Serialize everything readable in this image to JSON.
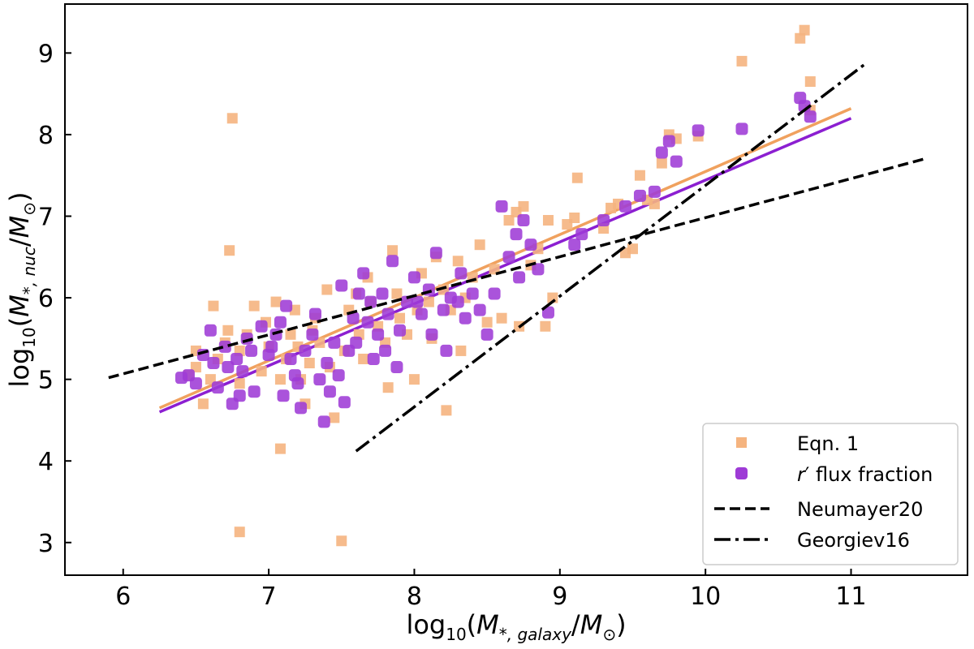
{
  "chart_data": {
    "type": "scatter",
    "xlim": [
      5.6,
      11.8
    ],
    "ylim": [
      2.6,
      9.6
    ],
    "xticks": [
      6,
      7,
      8,
      9,
      10,
      11
    ],
    "yticks": [
      3,
      4,
      5,
      6,
      7,
      8,
      9
    ],
    "xlabel": {
      "prefix": "log",
      "base": "10",
      "open": "(",
      "var": "M",
      "sub": "*, galaxy",
      "slash": "/",
      "var2": "M",
      "sub2": "⊙",
      "close": ")"
    },
    "ylabel": {
      "prefix": "log",
      "base": "10",
      "open": "(",
      "var": "M",
      "sub": "*, nuc",
      "slash": "/",
      "var2": "M",
      "sub2": "⊙",
      "close": ")"
    },
    "legend_position": "lower-right",
    "colors": {
      "eqn1": "#f5b47f",
      "rflux": "#9e3bd6",
      "eqn1_line": "#f0a15e",
      "rflux_line": "#8c1fd1",
      "ref": "#000000"
    },
    "series": [
      {
        "name": "Eqn. 1",
        "kind": "scatter",
        "marker": "square",
        "points": [
          [
            6.45,
            5.05
          ],
          [
            6.5,
            5.15
          ],
          [
            6.5,
            5.35
          ],
          [
            6.55,
            4.7
          ],
          [
            6.6,
            5.0
          ],
          [
            6.62,
            5.9
          ],
          [
            6.65,
            5.25
          ],
          [
            6.7,
            5.45
          ],
          [
            6.72,
            5.6
          ],
          [
            6.75,
            8.2
          ],
          [
            6.73,
            6.58
          ],
          [
            6.8,
            5.35
          ],
          [
            6.8,
            4.95
          ],
          [
            6.8,
            3.13
          ],
          [
            6.85,
            5.55
          ],
          [
            6.9,
            5.9
          ],
          [
            6.95,
            5.1
          ],
          [
            6.98,
            5.7
          ],
          [
            7.0,
            5.4
          ],
          [
            7.05,
            5.95
          ],
          [
            7.08,
            5.0
          ],
          [
            7.08,
            4.15
          ],
          [
            7.12,
            5.25
          ],
          [
            7.15,
            5.55
          ],
          [
            7.18,
            5.85
          ],
          [
            7.2,
            5.4
          ],
          [
            7.22,
            5.0
          ],
          [
            7.25,
            4.7
          ],
          [
            7.28,
            5.2
          ],
          [
            7.3,
            5.6
          ],
          [
            7.32,
            5.75
          ],
          [
            7.35,
            5.45
          ],
          [
            7.4,
            6.1
          ],
          [
            7.42,
            5.15
          ],
          [
            7.45,
            4.53
          ],
          [
            7.5,
            3.02
          ],
          [
            7.52,
            5.35
          ],
          [
            7.55,
            5.85
          ],
          [
            7.6,
            6.05
          ],
          [
            7.62,
            5.55
          ],
          [
            7.65,
            5.25
          ],
          [
            7.68,
            6.25
          ],
          [
            7.7,
            5.95
          ],
          [
            7.75,
            5.65
          ],
          [
            7.8,
            5.45
          ],
          [
            7.82,
            4.9
          ],
          [
            7.85,
            6.58
          ],
          [
            7.88,
            6.05
          ],
          [
            7.9,
            5.75
          ],
          [
            7.95,
            5.55
          ],
          [
            8.0,
            5.0
          ],
          [
            8.02,
            5.85
          ],
          [
            8.05,
            6.3
          ],
          [
            8.1,
            5.95
          ],
          [
            8.12,
            5.5
          ],
          [
            8.15,
            6.5
          ],
          [
            8.2,
            6.1
          ],
          [
            8.22,
            4.62
          ],
          [
            8.25,
            5.85
          ],
          [
            8.3,
            6.45
          ],
          [
            8.32,
            5.35
          ],
          [
            8.35,
            6.0
          ],
          [
            8.4,
            6.25
          ],
          [
            8.45,
            6.65
          ],
          [
            8.5,
            5.7
          ],
          [
            8.55,
            6.35
          ],
          [
            8.6,
            5.75
          ],
          [
            8.65,
            6.95
          ],
          [
            8.7,
            7.05
          ],
          [
            8.72,
            5.65
          ],
          [
            8.75,
            7.12
          ],
          [
            8.8,
            6.4
          ],
          [
            8.85,
            6.6
          ],
          [
            8.9,
            5.65
          ],
          [
            8.92,
            6.95
          ],
          [
            8.95,
            6.0
          ],
          [
            9.05,
            6.9
          ],
          [
            9.1,
            6.98
          ],
          [
            9.12,
            7.47
          ],
          [
            9.3,
            6.85
          ],
          [
            9.35,
            7.1
          ],
          [
            9.4,
            7.15
          ],
          [
            9.45,
            6.55
          ],
          [
            9.5,
            6.6
          ],
          [
            9.55,
            7.5
          ],
          [
            9.6,
            7.2
          ],
          [
            9.65,
            7.15
          ],
          [
            9.7,
            7.65
          ],
          [
            9.75,
            8.0
          ],
          [
            9.8,
            7.95
          ],
          [
            9.95,
            7.98
          ],
          [
            10.25,
            8.9
          ],
          [
            10.65,
            9.18
          ],
          [
            10.68,
            9.28
          ],
          [
            10.72,
            8.65
          ],
          [
            10.72,
            8.3
          ]
        ]
      },
      {
        "name": "r′ flux fraction",
        "kind": "scatter",
        "marker": "circle",
        "points": [
          [
            6.4,
            5.02
          ],
          [
            6.45,
            5.05
          ],
          [
            6.5,
            4.95
          ],
          [
            6.55,
            5.3
          ],
          [
            6.6,
            5.6
          ],
          [
            6.62,
            5.2
          ],
          [
            6.65,
            4.9
          ],
          [
            6.7,
            5.4
          ],
          [
            6.72,
            5.15
          ],
          [
            6.75,
            4.7
          ],
          [
            6.78,
            5.25
          ],
          [
            6.8,
            4.8
          ],
          [
            6.82,
            5.1
          ],
          [
            6.85,
            5.5
          ],
          [
            6.88,
            5.35
          ],
          [
            6.9,
            4.85
          ],
          [
            6.95,
            5.65
          ],
          [
            7.0,
            5.3
          ],
          [
            7.02,
            5.4
          ],
          [
            7.05,
            5.55
          ],
          [
            7.08,
            5.7
          ],
          [
            7.1,
            4.8
          ],
          [
            7.12,
            5.9
          ],
          [
            7.15,
            5.25
          ],
          [
            7.18,
            5.05
          ],
          [
            7.2,
            4.95
          ],
          [
            7.22,
            4.65
          ],
          [
            7.25,
            5.35
          ],
          [
            7.3,
            5.55
          ],
          [
            7.32,
            5.8
          ],
          [
            7.35,
            5.0
          ],
          [
            7.38,
            4.48
          ],
          [
            7.4,
            5.2
          ],
          [
            7.42,
            4.85
          ],
          [
            7.45,
            5.45
          ],
          [
            7.48,
            5.05
          ],
          [
            7.5,
            6.15
          ],
          [
            7.52,
            4.72
          ],
          [
            7.55,
            5.35
          ],
          [
            7.58,
            5.75
          ],
          [
            7.6,
            5.45
          ],
          [
            7.62,
            6.05
          ],
          [
            7.65,
            6.3
          ],
          [
            7.68,
            5.7
          ],
          [
            7.7,
            5.95
          ],
          [
            7.72,
            5.25
          ],
          [
            7.75,
            5.55
          ],
          [
            7.78,
            6.05
          ],
          [
            7.8,
            5.35
          ],
          [
            7.82,
            5.8
          ],
          [
            7.85,
            6.45
          ],
          [
            7.88,
            5.15
          ],
          [
            7.9,
            5.6
          ],
          [
            7.95,
            5.95
          ],
          [
            8.0,
            6.25
          ],
          [
            8.02,
            5.95
          ],
          [
            8.05,
            5.8
          ],
          [
            8.1,
            6.1
          ],
          [
            8.12,
            5.55
          ],
          [
            8.15,
            6.55
          ],
          [
            8.2,
            5.85
          ],
          [
            8.22,
            5.35
          ],
          [
            8.25,
            6.0
          ],
          [
            8.3,
            5.95
          ],
          [
            8.32,
            6.3
          ],
          [
            8.35,
            5.75
          ],
          [
            8.4,
            6.05
          ],
          [
            8.45,
            5.85
          ],
          [
            8.5,
            5.55
          ],
          [
            8.55,
            6.05
          ],
          [
            8.6,
            7.12
          ],
          [
            8.65,
            6.5
          ],
          [
            8.7,
            6.78
          ],
          [
            8.72,
            6.25
          ],
          [
            8.75,
            6.95
          ],
          [
            8.8,
            6.65
          ],
          [
            8.85,
            6.35
          ],
          [
            8.92,
            5.82
          ],
          [
            9.1,
            6.65
          ],
          [
            9.15,
            6.78
          ],
          [
            9.3,
            6.95
          ],
          [
            9.45,
            7.12
          ],
          [
            9.55,
            7.25
          ],
          [
            9.65,
            7.3
          ],
          [
            9.7,
            7.78
          ],
          [
            9.75,
            7.92
          ],
          [
            9.8,
            7.67
          ],
          [
            9.95,
            8.05
          ],
          [
            10.25,
            8.07
          ],
          [
            10.65,
            8.45
          ],
          [
            10.68,
            8.35
          ],
          [
            10.72,
            8.22
          ]
        ]
      },
      {
        "name": "Eqn. 1 fit",
        "kind": "fit",
        "points": [
          [
            6.25,
            4.65
          ],
          [
            11.0,
            8.32
          ]
        ]
      },
      {
        "name": "r′ flux fraction fit",
        "kind": "fit",
        "points": [
          [
            6.25,
            4.6
          ],
          [
            11.0,
            8.2
          ]
        ]
      },
      {
        "name": "Neumayer20",
        "kind": "ref",
        "dash": "dashed",
        "points": [
          [
            5.9,
            5.02
          ],
          [
            11.5,
            7.7
          ]
        ]
      },
      {
        "name": "Georgiev16",
        "kind": "ref",
        "dash": "dashdot",
        "points": [
          [
            7.6,
            4.12
          ],
          [
            11.1,
            8.87
          ]
        ]
      }
    ],
    "legend": [
      {
        "label_plain": "Eqn. 1"
      },
      {
        "label_italic": "r",
        "label_prime": "′",
        "label_rest": " flux fraction"
      },
      {
        "label_plain": "Neumayer20"
      },
      {
        "label_plain": "Georgiev16"
      }
    ]
  }
}
